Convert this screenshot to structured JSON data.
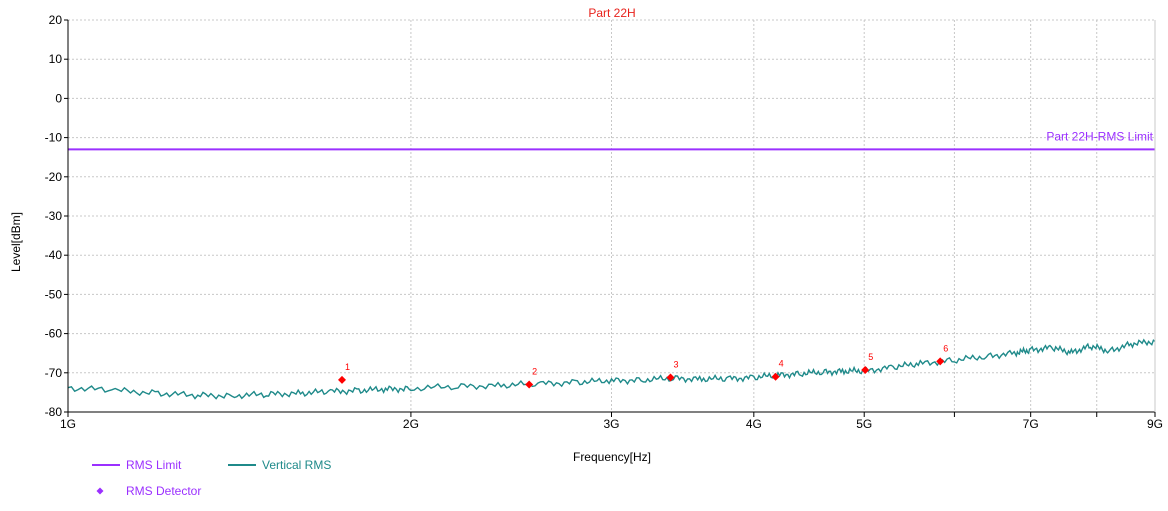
{
  "chart_data": {
    "type": "line",
    "title": "Part 22H",
    "xlabel": "Frequency[Hz]",
    "ylabel": "Level[dBm]",
    "x_scale": "log",
    "xlim": [
      1000000000,
      9000000000
    ],
    "ylim": [
      -80,
      20
    ],
    "grid": true,
    "x_ticks": [
      {
        "value": 1000000000,
        "label": "1G"
      },
      {
        "value": 2000000000,
        "label": "2G"
      },
      {
        "value": 3000000000,
        "label": "3G"
      },
      {
        "value": 4000000000,
        "label": "4G"
      },
      {
        "value": 5000000000,
        "label": "5G"
      },
      {
        "value": 7000000000,
        "label": "7G"
      },
      {
        "value": 9000000000,
        "label": "9G"
      }
    ],
    "x_minor_ticks": [
      6000000000,
      8000000000
    ],
    "y_ticks": [
      20,
      10,
      0,
      -10,
      -20,
      -30,
      -40,
      -50,
      -60,
      -70,
      -80
    ],
    "limit_line": {
      "value": -13,
      "label": "Part 22H-RMS Limit",
      "color": "#9b30ff"
    },
    "series": [
      {
        "name": "Vertical RMS",
        "color": "#1f8a8a",
        "x": [
          1000000000,
          1100000000,
          1200000000,
          1300000000,
          1400000000,
          1500000000,
          1600000000,
          1700000000,
          1800000000,
          1900000000,
          2000000000,
          2200000000,
          2400000000,
          2600000000,
          2800000000,
          3000000000,
          3200000000,
          3400000000,
          3600000000,
          3800000000,
          4000000000,
          4200000000,
          4400000000,
          4600000000,
          4800000000,
          5000000000,
          5300000000,
          5600000000,
          6000000000,
          6400000000,
          6800000000,
          7000000000,
          7300000000,
          7600000000,
          7900000000,
          8200000000,
          8600000000,
          9000000000
        ],
        "y": [
          -73.8,
          -74.5,
          -75.2,
          -75.8,
          -75.8,
          -75.5,
          -75.2,
          -74.8,
          -74.5,
          -74.2,
          -74.0,
          -73.5,
          -73.2,
          -72.8,
          -72.4,
          -72.0,
          -71.8,
          -71.4,
          -71.6,
          -71.5,
          -71.2,
          -70.6,
          -70.2,
          -69.8,
          -69.6,
          -69.5,
          -68.6,
          -67.6,
          -66.8,
          -65.8,
          -64.9,
          -64.2,
          -63.6,
          -64.8,
          -63.2,
          -64.4,
          -62.6,
          -62.0
        ]
      }
    ],
    "markers": [
      {
        "label": "1",
        "x": 1740000000,
        "y": -71.8
      },
      {
        "label": "2",
        "x": 2540000000,
        "y": -73.0
      },
      {
        "label": "3",
        "x": 3380000000,
        "y": -71.2
      },
      {
        "label": "4",
        "x": 4180000000,
        "y": -71.0
      },
      {
        "label": "5",
        "x": 5010000000,
        "y": -69.3
      },
      {
        "label": "6",
        "x": 5830000000,
        "y": -67.1
      }
    ],
    "legend": {
      "placement": "bottom-left",
      "items": [
        {
          "label": "RMS Limit",
          "color": "#9b30ff",
          "kind": "line"
        },
        {
          "label": "Vertical RMS",
          "color": "#1f8a8a",
          "kind": "line"
        },
        {
          "label": "RMS Detector",
          "color": "#9b30ff",
          "kind": "diamond"
        }
      ]
    }
  }
}
